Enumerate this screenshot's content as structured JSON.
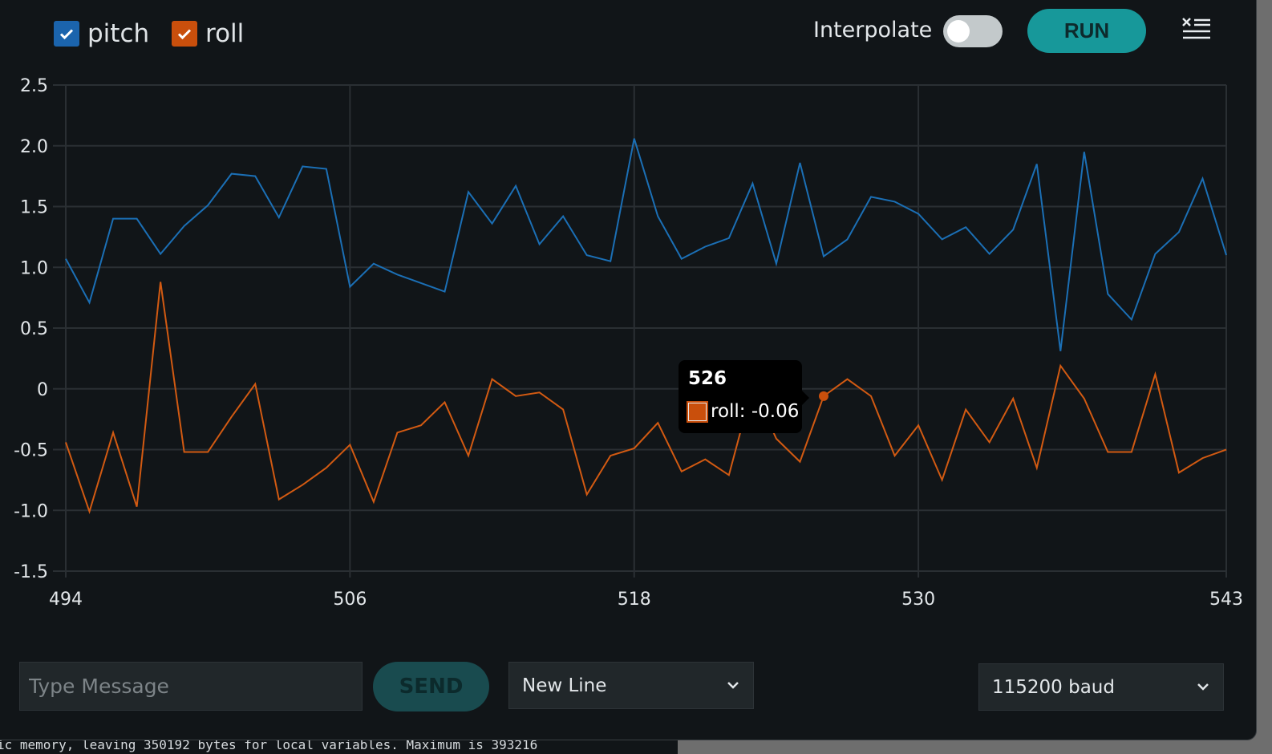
{
  "legend": {
    "series": [
      {
        "label": "pitch",
        "checked": true,
        "color": "#1b64ad"
      },
      {
        "label": "roll",
        "checked": true,
        "color": "#c94f0c"
      }
    ]
  },
  "toolbar": {
    "interpolate_label": "Interpolate",
    "interpolate_on": false,
    "run_label": "RUN",
    "clear_icon": "clear-list-icon"
  },
  "chart_data": {
    "type": "line",
    "title": "",
    "xlabel": "",
    "ylabel": "",
    "x_range": [
      494,
      543
    ],
    "ylim": [
      -1.5,
      2.5
    ],
    "x_ticks": [
      "494",
      "506",
      "518",
      "530",
      "543"
    ],
    "y_ticks": [
      "2.5",
      "2.0",
      "1.5",
      "1.0",
      "0.5",
      "0",
      "-0.5",
      "-1.0",
      "-1.5"
    ],
    "grid": true,
    "series": [
      {
        "name": "pitch",
        "color": "#1b6fb5",
        "values": [
          1.07,
          0.71,
          1.4,
          1.4,
          1.11,
          1.34,
          1.51,
          1.77,
          1.75,
          1.41,
          1.83,
          1.81,
          0.84,
          1.03,
          0.94,
          0.87,
          0.8,
          1.62,
          1.36,
          1.67,
          1.19,
          1.42,
          1.1,
          1.05,
          2.06,
          1.42,
          1.07,
          1.17,
          1.24,
          1.69,
          1.03,
          1.86,
          1.09,
          1.23,
          1.58,
          1.54,
          1.44,
          1.23,
          1.33,
          1.11,
          1.31,
          1.85,
          0.31,
          1.95,
          0.78,
          0.57,
          1.11,
          1.29,
          1.73,
          1.1
        ]
      },
      {
        "name": "roll",
        "color": "#d25a12",
        "values": [
          -0.44,
          -1.01,
          -0.36,
          -0.97,
          0.88,
          -0.52,
          -0.52,
          -0.23,
          0.04,
          -0.91,
          -0.79,
          -0.65,
          -0.46,
          -0.93,
          -0.36,
          -0.3,
          -0.11,
          -0.55,
          0.08,
          -0.06,
          -0.03,
          -0.17,
          -0.87,
          -0.55,
          -0.49,
          -0.28,
          -0.68,
          -0.58,
          -0.71,
          0.02,
          -0.41,
          -0.6,
          -0.06,
          0.08,
          -0.06,
          -0.55,
          -0.3,
          -0.75,
          -0.17,
          -0.44,
          -0.08,
          -0.65,
          0.19,
          -0.08,
          -0.52,
          -0.52,
          0.12,
          -0.69,
          -0.57,
          -0.5
        ]
      }
    ],
    "tooltip": {
      "x": "526",
      "series": "roll",
      "text": "roll: -0.06",
      "value": -0.06
    }
  },
  "footer": {
    "message_placeholder": "Type Message",
    "send_label": "SEND",
    "line_ending": "New Line",
    "baud": "115200 baud"
  },
  "console_text": "ic memory, leaving 350192 bytes for local variables. Maximum is 393216"
}
